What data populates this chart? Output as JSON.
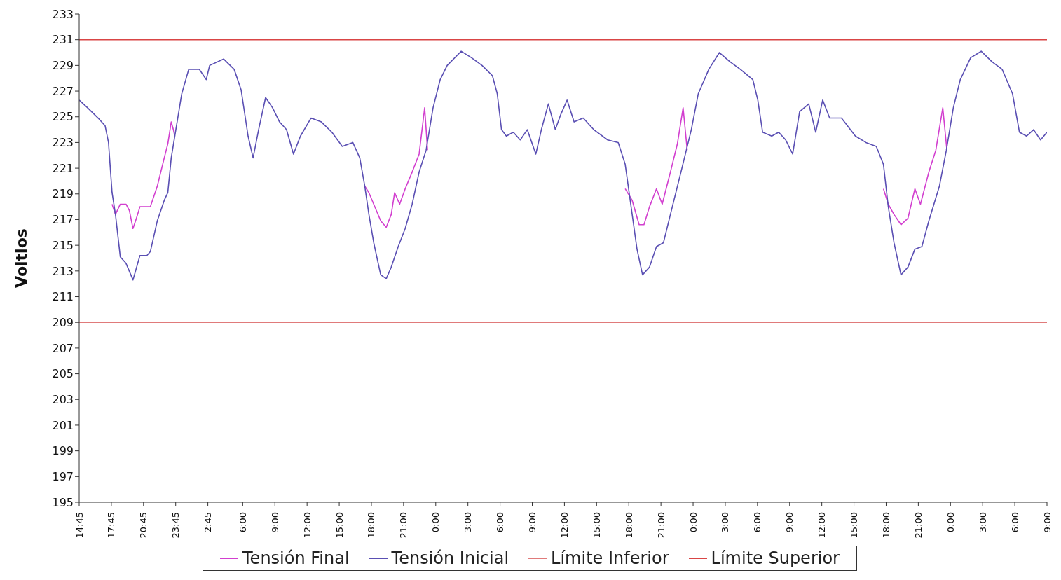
{
  "chart_data": {
    "type": "line",
    "ylabel": "Voltios",
    "xlim": [
      "2000-01-01T14:45",
      "2000-01-05T09:00"
    ],
    "ylim": [
      195,
      233
    ],
    "yticks": [
      195,
      197,
      199,
      201,
      203,
      205,
      207,
      209,
      211,
      213,
      215,
      217,
      219,
      221,
      223,
      225,
      227,
      229,
      231,
      233
    ],
    "xticks": [
      {
        "value": "2000-01-01T14:45",
        "label": "14:45"
      },
      {
        "value": "2000-01-01T17:45",
        "label": "17:45"
      },
      {
        "value": "2000-01-01T20:45",
        "label": "20:45"
      },
      {
        "value": "2000-01-01T23:45",
        "label": "23:45"
      },
      {
        "value": "2000-01-02T02:45",
        "label": "2:45"
      },
      {
        "value": "2000-01-02T06:00",
        "label": "6:00"
      },
      {
        "value": "2000-01-02T09:00",
        "label": "9:00"
      },
      {
        "value": "2000-01-02T12:00",
        "label": "12:00"
      },
      {
        "value": "2000-01-02T15:00",
        "label": "15:00"
      },
      {
        "value": "2000-01-02T18:00",
        "label": "18:00"
      },
      {
        "value": "2000-01-02T21:00",
        "label": "21:00"
      },
      {
        "value": "2000-01-03T00:00",
        "label": "0:00"
      },
      {
        "value": "2000-01-03T03:00",
        "label": "3:00"
      },
      {
        "value": "2000-01-03T06:00",
        "label": "6:00"
      },
      {
        "value": "2000-01-03T09:00",
        "label": "9:00"
      },
      {
        "value": "2000-01-03T12:00",
        "label": "12:00"
      },
      {
        "value": "2000-01-03T15:00",
        "label": "15:00"
      },
      {
        "value": "2000-01-03T18:00",
        "label": "18:00"
      },
      {
        "value": "2000-01-03T21:00",
        "label": "21:00"
      },
      {
        "value": "2000-01-04T00:00",
        "label": "0:00"
      },
      {
        "value": "2000-01-04T03:00",
        "label": "3:00"
      },
      {
        "value": "2000-01-04T06:00",
        "label": "6:00"
      },
      {
        "value": "2000-01-04T09:00",
        "label": "9:00"
      },
      {
        "value": "2000-01-04T12:00",
        "label": "12:00"
      },
      {
        "value": "2000-01-04T15:00",
        "label": "15:00"
      },
      {
        "value": "2000-01-04T18:00",
        "label": "18:00"
      },
      {
        "value": "2000-01-04T21:00",
        "label": "21:00"
      },
      {
        "value": "2000-01-05T00:00",
        "label": "0:00"
      },
      {
        "value": "2000-01-05T03:00",
        "label": "3:00"
      },
      {
        "value": "2000-01-05T06:00",
        "label": "6:00"
      },
      {
        "value": "2000-01-05T09:00",
        "label": "9:00"
      }
    ],
    "grid": false,
    "legend": "bottom",
    "series": [
      {
        "name": "Tensión Final",
        "color": "#d23fcf",
        "x": [
          "2000-01-01T17:49",
          "2000-01-01T18:08",
          "2000-01-01T18:35",
          "2000-01-01T19:07",
          "2000-01-01T19:26",
          "2000-01-01T19:46",
          "2000-01-01T20:05",
          "2000-01-01T20:25",
          "2000-01-01T21:23",
          "2000-01-01T22:02",
          "2000-01-01T22:41",
          "2000-01-01T23:01",
          "2000-01-01T23:20",
          "2000-01-01T23:32",
          "2000-01-01T23:40",
          "2000-01-02T08:00",
          "2000-01-02T17:23",
          "2000-01-02T17:46",
          "2000-01-02T18:13",
          "2000-01-02T18:52",
          "2000-01-02T19:23",
          "2000-01-02T19:51",
          "2000-01-02T20:10",
          "2000-01-02T20:38",
          "2000-01-02T21:09",
          "2000-01-02T21:48",
          "2000-01-02T22:27",
          "2000-01-02T22:58",
          "2000-01-02T23:14",
          "2000-01-03T08:00",
          "2000-01-03T17:40",
          "2000-01-03T18:19",
          "2000-01-03T18:58",
          "2000-01-03T19:25",
          "2000-01-03T19:56",
          "2000-01-03T20:35",
          "2000-01-03T21:07",
          "2000-01-03T21:53",
          "2000-01-03T22:32",
          "2000-01-03T23:04",
          "2000-01-03T23:27",
          "2000-01-04T08:00",
          "2000-01-04T17:45",
          "2000-01-04T18:12",
          "2000-01-04T18:44",
          "2000-01-04T19:23",
          "2000-01-04T20:02",
          "2000-01-04T20:41",
          "2000-01-04T21:12",
          "2000-01-04T21:59",
          "2000-01-04T22:38",
          "2000-01-04T23:17",
          "2000-01-04T23:40"
        ],
        "values": [
          218.2,
          217.4,
          218.2,
          218.2,
          217.7,
          216.3,
          217.1,
          218,
          218,
          219.6,
          221.8,
          222.9,
          224.6,
          224,
          223.5,
          null,
          219.6,
          219.1,
          218.2,
          216.9,
          216.4,
          217.4,
          219.1,
          218.2,
          219.4,
          220.7,
          222.1,
          225.7,
          222.4,
          null,
          219.4,
          218.5,
          216.6,
          216.6,
          218,
          219.4,
          218.2,
          220.7,
          222.9,
          225.7,
          222.4,
          null,
          219.4,
          218.2,
          217.4,
          216.6,
          217.1,
          219.4,
          218.2,
          220.7,
          222.4,
          225.7,
          222.4
        ]
      },
      {
        "name": "Tensión Inicial",
        "color": "#5a4fb3",
        "x": [
          "2000-01-01T14:45",
          "2000-01-01T15:32",
          "2000-01-01T16:31",
          "2000-01-01T17:10",
          "2000-01-01T17:29",
          "2000-01-01T17:49",
          "2000-01-01T18:08",
          "2000-01-01T18:35",
          "2000-01-01T19:07",
          "2000-01-01T19:46",
          "2000-01-01T20:25",
          "2000-01-01T21:04",
          "2000-01-01T21:23",
          "2000-01-01T22:02",
          "2000-01-01T22:41",
          "2000-01-01T23:01",
          "2000-01-01T23:20",
          "2000-01-01T23:40",
          "2000-01-02T00:19",
          "2000-01-02T00:58",
          "2000-01-02T01:57",
          "2000-01-02T02:36",
          "2000-01-02T02:55",
          "2000-01-02T04:13",
          "2000-01-02T05:12",
          "2000-01-02T05:51",
          "2000-01-02T06:30",
          "2000-01-02T06:58",
          "2000-01-02T07:29",
          "2000-01-02T08:08",
          "2000-01-02T08:47",
          "2000-01-02T09:26",
          "2000-01-02T10:05",
          "2000-01-02T10:44",
          "2000-01-02T11:23",
          "2000-01-02T12:22",
          "2000-01-02T13:20",
          "2000-01-02T14:19",
          "2000-01-02T15:17",
          "2000-01-02T16:16",
          "2000-01-02T16:55",
          "2000-01-02T17:23",
          "2000-01-02T17:46",
          "2000-01-02T18:13",
          "2000-01-02T18:52",
          "2000-01-02T19:23",
          "2000-01-02T19:51",
          "2000-01-02T20:30",
          "2000-01-02T21:09",
          "2000-01-02T21:48",
          "2000-01-02T22:27",
          "2000-01-02T23:06",
          "2000-01-02T23:45",
          "2000-01-03T00:25",
          "2000-01-03T01:04",
          "2000-01-03T02:22",
          "2000-01-03T03:20",
          "2000-01-03T04:19",
          "2000-01-03T05:17",
          "2000-01-03T05:44",
          "2000-01-03T06:08",
          "2000-01-03T06:35",
          "2000-01-03T07:14",
          "2000-01-03T07:53",
          "2000-01-03T08:32",
          "2000-01-03T09:20",
          "2000-01-03T09:51",
          "2000-01-03T10:30",
          "2000-01-03T11:09",
          "2000-01-03T11:40",
          "2000-01-03T12:15",
          "2000-01-03T12:54",
          "2000-01-03T13:45",
          "2000-01-03T14:44",
          "2000-01-03T16:02",
          "2000-01-03T17:01",
          "2000-01-03T17:40",
          "2000-01-03T18:19",
          "2000-01-03T18:46",
          "2000-01-03T19:17",
          "2000-01-03T19:56",
          "2000-01-03T20:35",
          "2000-01-03T21:14",
          "2000-01-03T21:53",
          "2000-01-03T22:52",
          "2000-01-03T23:50",
          "2000-01-04T00:29",
          "2000-01-04T01:28",
          "2000-01-04T02:27",
          "2000-01-04T03:25",
          "2000-01-04T04:24",
          "2000-01-04T05:34",
          "2000-01-04T06:02",
          "2000-01-04T06:29",
          "2000-01-04T07:20",
          "2000-01-04T07:59",
          "2000-01-04T08:38",
          "2000-01-04T09:17",
          "2000-01-04T09:56",
          "2000-01-04T10:47",
          "2000-01-04T11:26",
          "2000-01-04T12:05",
          "2000-01-04T12:44",
          "2000-01-04T13:50",
          "2000-01-04T15:08",
          "2000-01-04T16:07",
          "2000-01-04T17:05",
          "2000-01-04T17:45",
          "2000-01-04T18:12",
          "2000-01-04T18:44",
          "2000-01-04T19:23",
          "2000-01-04T20:02",
          "2000-01-04T20:41",
          "2000-01-04T21:20",
          "2000-01-04T21:59",
          "2000-01-04T22:58",
          "2000-01-04T23:37",
          "2000-01-05T00:16",
          "2000-01-05T00:55",
          "2000-01-05T01:53",
          "2000-01-05T02:52",
          "2000-01-05T03:51",
          "2000-01-05T04:49",
          "2000-01-05T05:47",
          "2000-01-05T06:26",
          "2000-01-05T07:06",
          "2000-01-05T07:45",
          "2000-01-05T08:24",
          "2000-01-05T09:00"
        ],
        "values": [
          226.3,
          225.7,
          224.9,
          224.3,
          223,
          219.1,
          217.4,
          214.1,
          213.6,
          212.3,
          214.2,
          214.2,
          214.5,
          216.9,
          218.5,
          219.1,
          221.8,
          223.5,
          226.8,
          228.7,
          228.7,
          227.9,
          229,
          229.5,
          228.7,
          227.1,
          223.5,
          221.8,
          224,
          226.5,
          225.7,
          224.6,
          224,
          222.1,
          223.5,
          224.9,
          224.6,
          223.8,
          222.7,
          223,
          221.8,
          219.6,
          217.4,
          215.2,
          212.7,
          212.4,
          213.3,
          214.9,
          216.3,
          218.2,
          220.7,
          222.4,
          225.7,
          227.9,
          229,
          230.1,
          229.6,
          229,
          228.2,
          226.8,
          224,
          223.5,
          223.8,
          223.2,
          224,
          222.1,
          224,
          226,
          224,
          225.2,
          226.3,
          224.6,
          224.9,
          224,
          223.2,
          223,
          221.3,
          217.4,
          214.7,
          212.7,
          213.3,
          214.9,
          215.2,
          217.4,
          220.7,
          224,
          226.8,
          228.7,
          230,
          229.3,
          228.7,
          227.9,
          226.3,
          223.8,
          223.5,
          223.8,
          223.2,
          222.1,
          225.4,
          226,
          223.8,
          226.3,
          224.9,
          224.9,
          223.5,
          223,
          222.7,
          221.3,
          218,
          215.2,
          212.7,
          213.3,
          214.7,
          214.9,
          216.9,
          219.6,
          222.4,
          225.7,
          227.9,
          229.6,
          230.1,
          229.3,
          228.7,
          226.8,
          223.8,
          223.5,
          224,
          223.2,
          223.8
        ]
      },
      {
        "name": "Límite Inferior",
        "color": "#e07a7a",
        "x": [
          "2000-01-01T14:45",
          "2000-01-05T09:00"
        ],
        "values": [
          209,
          209
        ]
      },
      {
        "name": "Límite Superior",
        "color": "#d94545",
        "x": [
          "2000-01-01T14:45",
          "2000-01-05T09:00"
        ],
        "values": [
          231,
          231
        ]
      }
    ]
  }
}
